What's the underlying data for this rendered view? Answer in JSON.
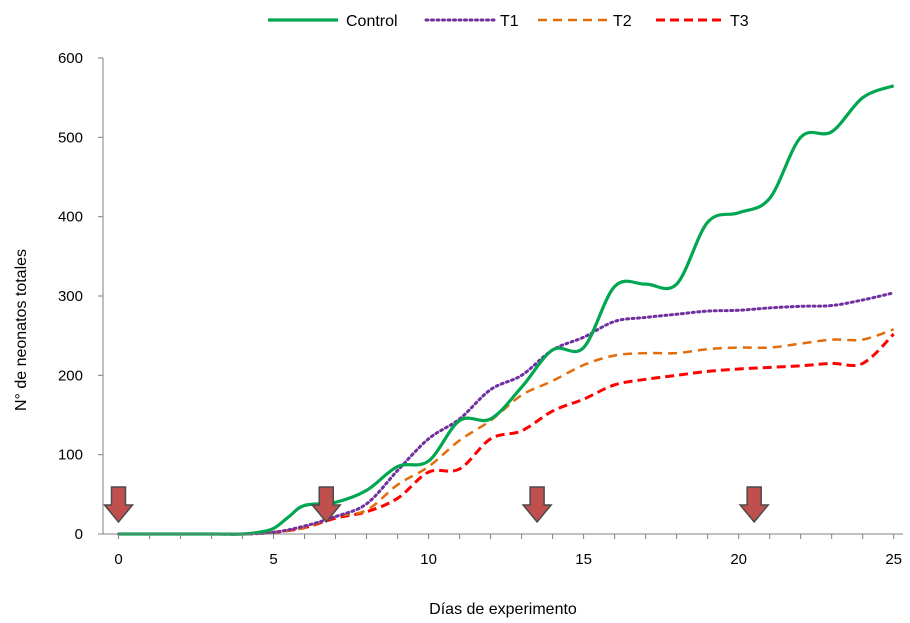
{
  "chart_data": {
    "type": "line",
    "title": "",
    "xlabel": "Días de experimento",
    "ylabel": "N° de neonatos totales",
    "xlim": [
      -0.5,
      25.3
    ],
    "ylim": [
      0,
      600
    ],
    "x_ticks": [
      "0",
      "5",
      "10",
      "15",
      "20",
      "25"
    ],
    "y_ticks": [
      "0",
      "100",
      "200",
      "300",
      "400",
      "500",
      "600"
    ],
    "grid": false,
    "legend_position": "top",
    "markers": {
      "description": "downward red arrows on the x axis",
      "color": "#c0504d",
      "x": [
        0,
        6.7,
        13.5,
        20.5
      ]
    },
    "series": [
      {
        "name": "Control",
        "color": "#00a650",
        "style": "solid",
        "x": [
          0,
          1,
          2,
          3,
          4,
          4.5,
          5,
          5.5,
          6,
          7,
          8,
          9,
          10,
          11,
          12,
          13,
          14,
          15,
          16,
          17,
          18,
          19,
          20,
          21,
          22,
          23,
          24,
          25
        ],
        "y": [
          0,
          0,
          0,
          0,
          0,
          2,
          7,
          22,
          36,
          40,
          55,
          85,
          92,
          143,
          145,
          185,
          232,
          235,
          312,
          315,
          315,
          393,
          405,
          423,
          500,
          507,
          550,
          565
        ]
      },
      {
        "name": "T1",
        "color": "#7030a0",
        "style": "dotted",
        "x": [
          0,
          1,
          2,
          3,
          4,
          5,
          6,
          7,
          8,
          9,
          10,
          11,
          12,
          13,
          14,
          15,
          16,
          17,
          18,
          19,
          20,
          21,
          22,
          23,
          24,
          25
        ],
        "y": [
          0,
          0,
          0,
          0,
          0,
          2,
          10,
          22,
          38,
          80,
          120,
          145,
          182,
          200,
          232,
          248,
          268,
          273,
          277,
          281,
          282,
          285,
          287,
          288,
          295,
          304
        ]
      },
      {
        "name": "T2",
        "color": "#e36c0a",
        "style": "dashed",
        "x": [
          0,
          1,
          2,
          3,
          4,
          5,
          6,
          7,
          8,
          9,
          10,
          11,
          12,
          13,
          14,
          15,
          16,
          17,
          18,
          19,
          20,
          21,
          22,
          23,
          24,
          25
        ],
        "y": [
          0,
          0,
          0,
          0,
          0,
          2,
          8,
          22,
          30,
          62,
          85,
          118,
          143,
          175,
          193,
          213,
          225,
          228,
          228,
          233,
          235,
          235,
          240,
          245,
          245,
          258
        ]
      },
      {
        "name": "T3",
        "color": "#ff0000",
        "style": "dashed",
        "x": [
          0,
          1,
          2,
          3,
          4,
          5,
          6,
          7,
          8,
          9,
          10,
          11,
          12,
          13,
          14,
          15,
          16,
          17,
          18,
          19,
          20,
          21,
          22,
          23,
          24,
          25
        ],
        "y": [
          0,
          0,
          0,
          0,
          0,
          2,
          8,
          20,
          28,
          45,
          78,
          82,
          120,
          130,
          155,
          170,
          188,
          195,
          200,
          205,
          208,
          210,
          212,
          215,
          215,
          252
        ]
      }
    ]
  }
}
